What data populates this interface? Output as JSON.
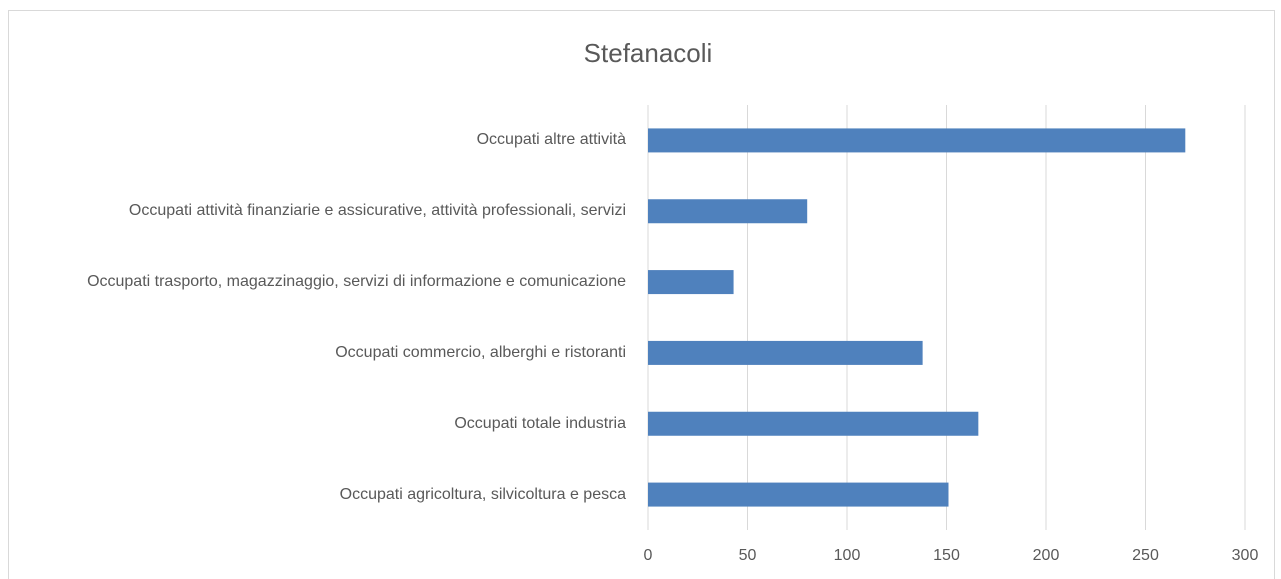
{
  "chart_data": {
    "type": "bar",
    "orientation": "horizontal",
    "title": "Stefanacoli",
    "categories": [
      "Occupati altre attività",
      "Occupati attività finanziarie e assicurative, attività professionali, servizi",
      "Occupati trasporto, magazzinaggio, servizi di informazione e comunicazione",
      "Occupati commercio, alberghi e ristoranti",
      "Occupati totale industria",
      "Occupati agricoltura, silvicoltura e pesca"
    ],
    "values": [
      270,
      80,
      43,
      138,
      166,
      151
    ],
    "color": "#4f81bd",
    "xlim": [
      0,
      300
    ],
    "xticks": [
      0,
      50,
      100,
      150,
      200,
      250,
      300
    ],
    "grid": true
  }
}
